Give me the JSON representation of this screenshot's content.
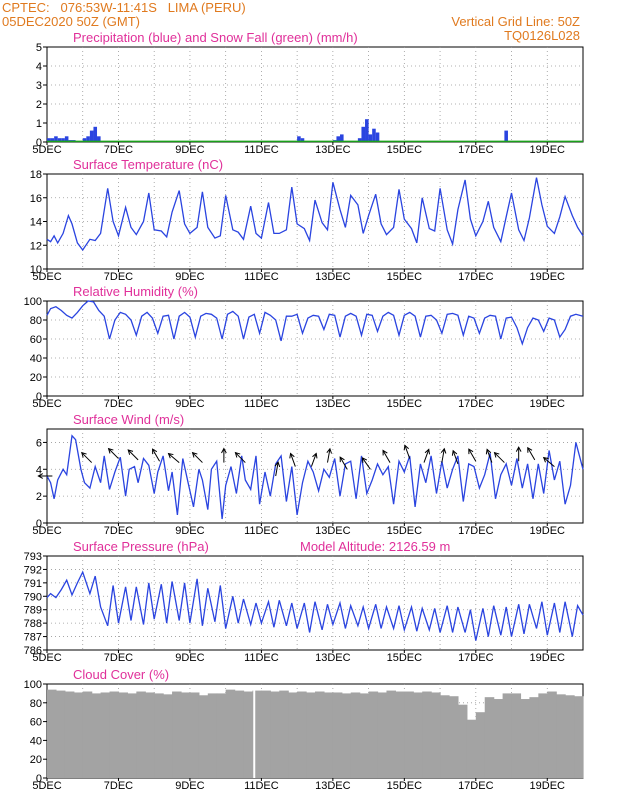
{
  "header": {
    "source_line": "CPTEC:   076:53W-11:41S   LIMA (PERU)",
    "date_line": "05DEC2020 50Z (GMT)",
    "grid_line": "Vertical Grid Line: 50Z",
    "code": "TQ0126L028"
  },
  "colors": {
    "header": "#e07a1f",
    "panel_title": "#e0309a",
    "line": "#2a44e0",
    "snow": "#1aa01a",
    "cloud": "#a3a3a3",
    "grid": "#999999"
  },
  "chart_data": [
    {
      "type": "bar",
      "title": "Precipitation (blue) and Snow Fall (green) (mm/h)",
      "ylim": [
        0,
        5
      ],
      "yticks": [
        0,
        1,
        2,
        3,
        4,
        5
      ],
      "xlabels": [
        "5DEC",
        "7DEC",
        "9DEC",
        "11DEC",
        "13DEC",
        "15DEC",
        "17DEC",
        "19DEC"
      ],
      "x_day0": "5DEC",
      "x_days": 15,
      "series": [
        {
          "color": "blue",
          "x": [
            0.05,
            0.15,
            0.25,
            0.35,
            0.45,
            0.55,
            0.65,
            0.75,
            1.05,
            1.15,
            1.25,
            1.35,
            1.45,
            4.05,
            4.15,
            7.05,
            7.15,
            8.05,
            8.15,
            8.25,
            8.75,
            8.85,
            8.95,
            9.05,
            9.15,
            9.25,
            12.85
          ],
          "values": [
            0.2,
            0.2,
            0.3,
            0.2,
            0.2,
            0.3,
            0.1,
            0.1,
            0.2,
            0.3,
            0.6,
            0.8,
            0.3,
            0.05,
            0.05,
            0.3,
            0.2,
            0.1,
            0.3,
            0.4,
            0.2,
            0.8,
            1.2,
            0.4,
            0.7,
            0.5,
            0.6
          ]
        },
        {
          "color": "green",
          "x": [
            0,
            15
          ],
          "values": [
            0.03,
            0.03
          ]
        }
      ]
    },
    {
      "type": "line",
      "title": "Surface Temperature (nC)",
      "ylim": [
        10,
        18
      ],
      "yticks": [
        10,
        12,
        14,
        16,
        18
      ],
      "xlabels": [
        "5DEC",
        "7DEC",
        "9DEC",
        "11DEC",
        "13DEC",
        "15DEC",
        "17DEC",
        "19DEC"
      ],
      "x_day0": "5DEC",
      "x_days": 15,
      "x": [
        0.0,
        0.1,
        0.2,
        0.3,
        0.45,
        0.6,
        0.7,
        0.85,
        1.0,
        1.2,
        1.35,
        1.5,
        1.7,
        1.85,
        2.0,
        2.2,
        2.35,
        2.5,
        2.7,
        2.85,
        3.0,
        3.2,
        3.35,
        3.5,
        3.7,
        3.85,
        4.0,
        4.2,
        4.35,
        4.5,
        4.7,
        4.85,
        5.0,
        5.2,
        5.35,
        5.5,
        5.7,
        5.85,
        6.0,
        6.2,
        6.35,
        6.5,
        6.7,
        6.85,
        7.0,
        7.2,
        7.35,
        7.5,
        7.7,
        7.85,
        8.0,
        8.2,
        8.35,
        8.5,
        8.7,
        8.85,
        9.0,
        9.2,
        9.35,
        9.5,
        9.7,
        9.85,
        10.0,
        10.2,
        10.35,
        10.5,
        10.7,
        10.85,
        11.0,
        11.2,
        11.35,
        11.5,
        11.7,
        11.85,
        12.0,
        12.2,
        12.35,
        12.5,
        12.7,
        12.85,
        13.0,
        13.2,
        13.35,
        13.5,
        13.7,
        13.85,
        14.0,
        14.2,
        14.35,
        14.5,
        14.7,
        14.85,
        15.0
      ],
      "values": [
        12.5,
        12.3,
        12.8,
        12.2,
        13.0,
        14.5,
        13.8,
        12.2,
        11.6,
        12.5,
        12.4,
        13.0,
        16.8,
        14.0,
        12.8,
        15.2,
        13.5,
        12.9,
        14.0,
        16.4,
        13.3,
        13.2,
        12.7,
        14.8,
        16.6,
        13.8,
        13.0,
        13.5,
        16.5,
        13.5,
        12.6,
        12.8,
        16.2,
        13.3,
        13.1,
        12.5,
        15.3,
        13.0,
        12.6,
        15.6,
        13.0,
        13.0,
        13.3,
        16.9,
        13.8,
        13.4,
        12.4,
        15.8,
        13.9,
        13.3,
        17.3,
        15.0,
        13.5,
        16.2,
        15.4,
        13.0,
        14.5,
        16.3,
        13.8,
        12.9,
        13.5,
        16.7,
        14.2,
        13.4,
        12.2,
        16.0,
        13.4,
        13.2,
        16.8,
        13.3,
        12.1,
        15.0,
        17.5,
        14.2,
        12.8,
        14.0,
        15.7,
        13.5,
        12.3,
        14.4,
        16.4,
        13.3,
        12.4,
        14.3,
        17.7,
        15.4,
        13.6,
        13.0,
        14.4,
        16.1,
        14.5,
        13.5,
        12.8
      ]
    },
    {
      "type": "line",
      "title": "Relative Humidity (%)",
      "ylim": [
        0,
        100
      ],
      "yticks": [
        0,
        20,
        40,
        60,
        80,
        100
      ],
      "xlabels": [
        "5DEC",
        "7DEC",
        "9DEC",
        "11DEC",
        "13DEC",
        "15DEC",
        "17DEC",
        "19DEC"
      ],
      "x_day0": "5DEC",
      "x_days": 15,
      "x": [
        0.0,
        0.1,
        0.25,
        0.4,
        0.55,
        0.7,
        0.85,
        1.0,
        1.15,
        1.3,
        1.45,
        1.6,
        1.75,
        1.9,
        2.05,
        2.2,
        2.35,
        2.5,
        2.65,
        2.8,
        2.95,
        3.1,
        3.25,
        3.4,
        3.55,
        3.7,
        3.85,
        4.0,
        4.15,
        4.3,
        4.45,
        4.6,
        4.75,
        4.9,
        5.05,
        5.2,
        5.35,
        5.5,
        5.65,
        5.8,
        5.95,
        6.1,
        6.25,
        6.4,
        6.55,
        6.7,
        6.85,
        7.0,
        7.15,
        7.3,
        7.45,
        7.6,
        7.75,
        7.9,
        8.05,
        8.2,
        8.35,
        8.5,
        8.65,
        8.8,
        8.95,
        9.1,
        9.25,
        9.4,
        9.55,
        9.7,
        9.85,
        10.0,
        10.15,
        10.3,
        10.45,
        10.6,
        10.75,
        10.9,
        11.05,
        11.2,
        11.35,
        11.5,
        11.65,
        11.8,
        11.95,
        12.1,
        12.25,
        12.4,
        12.55,
        12.7,
        12.85,
        13.0,
        13.15,
        13.3,
        13.45,
        13.6,
        13.75,
        13.9,
        14.05,
        14.2,
        14.35,
        14.5,
        14.65,
        14.8,
        15.0
      ],
      "values": [
        85,
        92,
        94,
        90,
        85,
        82,
        88,
        95,
        100,
        99,
        90,
        84,
        60,
        80,
        88,
        86,
        80,
        64,
        84,
        88,
        82,
        66,
        84,
        85,
        60,
        84,
        88,
        83,
        62,
        84,
        87,
        86,
        82,
        60,
        86,
        89,
        84,
        60,
        83,
        86,
        66,
        88,
        85,
        80,
        58,
        84,
        84,
        86,
        66,
        82,
        85,
        84,
        70,
        86,
        85,
        62,
        84,
        87,
        84,
        64,
        86,
        85,
        68,
        84,
        88,
        85,
        64,
        85,
        88,
        84,
        62,
        84,
        85,
        80,
        66,
        86,
        87,
        85,
        64,
        84,
        82,
        66,
        82,
        85,
        84,
        60,
        82,
        83,
        72,
        55,
        72,
        82,
        80,
        68,
        82,
        80,
        62,
        70,
        84,
        86,
        84
      ]
    },
    {
      "type": "line",
      "title": "Surface Wind (m/s)",
      "ylim": [
        0,
        7
      ],
      "yticks": [
        0,
        2,
        4,
        6
      ],
      "xlabels": [
        "5DEC",
        "7DEC",
        "9DEC",
        "11DEC",
        "13DEC",
        "15DEC",
        "17DEC",
        "19DEC"
      ],
      "x_day0": "5DEC",
      "x_days": 15,
      "x": [
        0.0,
        0.1,
        0.2,
        0.3,
        0.45,
        0.55,
        0.7,
        0.8,
        0.95,
        1.05,
        1.2,
        1.35,
        1.5,
        1.6,
        1.75,
        1.9,
        2.05,
        2.2,
        2.3,
        2.45,
        2.55,
        2.7,
        2.85,
        3.0,
        3.1,
        3.25,
        3.4,
        3.5,
        3.65,
        3.8,
        3.95,
        4.1,
        4.25,
        4.35,
        4.5,
        4.6,
        4.75,
        4.9,
        5.0,
        5.15,
        5.3,
        5.45,
        5.55,
        5.7,
        5.85,
        5.95,
        6.1,
        6.25,
        6.4,
        6.55,
        6.7,
        6.85,
        7.0,
        7.15,
        7.3,
        7.45,
        7.6,
        7.75,
        7.9,
        8.05,
        8.2,
        8.35,
        8.5,
        8.65,
        8.8,
        8.95,
        9.1,
        9.25,
        9.4,
        9.55,
        9.7,
        9.85,
        10.0,
        10.15,
        10.3,
        10.45,
        10.6,
        10.75,
        10.9,
        11.05,
        11.2,
        11.35,
        11.5,
        11.65,
        11.8,
        11.95,
        12.1,
        12.25,
        12.4,
        12.55,
        12.7,
        12.85,
        13.0,
        13.15,
        13.3,
        13.45,
        13.6,
        13.75,
        13.9,
        14.05,
        14.2,
        14.35,
        14.5,
        14.65,
        14.8,
        15.0
      ],
      "values": [
        3.5,
        3.0,
        1.8,
        3.2,
        4.0,
        3.6,
        6.5,
        6.2,
        4.0,
        3.0,
        2.6,
        4.2,
        3.0,
        5.0,
        2.5,
        3.8,
        4.9,
        2.0,
        4.0,
        4.2,
        3.0,
        4.8,
        4.3,
        2.2,
        3.8,
        5.0,
        2.4,
        3.8,
        0.6,
        4.8,
        3.0,
        1.2,
        4.0,
        3.2,
        1.0,
        4.0,
        4.6,
        0.3,
        2.8,
        4.2,
        2.2,
        5.0,
        3.2,
        2.5,
        5.0,
        1.4,
        3.8,
        2.0,
        4.4,
        5.0,
        1.6,
        4.2,
        0.6,
        3.0,
        4.6,
        3.8,
        2.4,
        4.0,
        3.4,
        4.8,
        2.0,
        4.4,
        4.6,
        1.8,
        5.0,
        2.2,
        3.2,
        4.4,
        3.6,
        4.2,
        1.4,
        4.6,
        3.8,
        5.0,
        1.2,
        4.4,
        3.0,
        5.0,
        2.2,
        4.6,
        2.6,
        4.0,
        5.0,
        1.6,
        4.4,
        4.2,
        2.6,
        3.6,
        5.2,
        1.8,
        3.6,
        4.4,
        2.8,
        4.8,
        2.6,
        4.4,
        1.8,
        4.4,
        2.2,
        5.4,
        3.2,
        4.6,
        1.4,
        2.8,
        6.0,
        4.0
      ],
      "arrows": {
        "x": [
          0.15,
          1.25,
          2.0,
          2.55,
          3.15,
          3.7,
          4.35,
          4.95,
          5.55,
          6.4,
          6.95,
          7.4,
          7.85,
          8.4,
          9.05,
          9.6,
          10.15,
          10.55,
          11.05,
          11.5,
          12.0,
          12.45,
          12.8,
          13.2,
          13.65,
          14.2
        ],
        "speed": [
          3.5,
          4.5,
          4.8,
          4.7,
          4.6,
          4.5,
          4.5,
          4.5,
          4.5,
          3.5,
          4.2,
          4.2,
          4.5,
          4.0,
          4.0,
          4.5,
          4.8,
          4.5,
          4.5,
          4.4,
          4.6,
          4.5,
          4.5,
          4.6,
          4.7,
          4.2
        ],
        "direction_deg": [
          180,
          135,
          135,
          135,
          120,
          140,
          135,
          90,
          135,
          80,
          110,
          70,
          80,
          120,
          125,
          120,
          110,
          70,
          80,
          110,
          120,
          110,
          135,
          90,
          120,
          140
        ]
      }
    },
    {
      "type": "line",
      "title": "Surface Pressure (hPa)",
      "annotation": "Model Altitude: 2126.59 m",
      "ylim": [
        786,
        793
      ],
      "yticks": [
        786,
        787,
        788,
        789,
        790,
        791,
        792,
        793
      ],
      "xlabels": [
        "5DEC",
        "7DEC",
        "9DEC",
        "11DEC",
        "13DEC",
        "15DEC",
        "17DEC",
        "19DEC"
      ],
      "x_day0": "5DEC",
      "x_days": 15,
      "x": [
        0.0,
        0.1,
        0.25,
        0.4,
        0.55,
        0.7,
        0.85,
        1.0,
        1.2,
        1.35,
        1.5,
        1.7,
        1.85,
        2.0,
        2.2,
        2.35,
        2.5,
        2.7,
        2.85,
        3.0,
        3.2,
        3.35,
        3.5,
        3.7,
        3.85,
        4.0,
        4.2,
        4.35,
        4.5,
        4.7,
        4.85,
        5.0,
        5.2,
        5.35,
        5.5,
        5.7,
        5.85,
        6.0,
        6.2,
        6.35,
        6.5,
        6.7,
        6.85,
        7.0,
        7.2,
        7.35,
        7.5,
        7.7,
        7.85,
        8.0,
        8.2,
        8.35,
        8.5,
        8.7,
        8.85,
        9.0,
        9.2,
        9.35,
        9.5,
        9.7,
        9.85,
        10.0,
        10.2,
        10.35,
        10.5,
        10.7,
        10.85,
        11.0,
        11.2,
        11.35,
        11.5,
        11.7,
        11.85,
        12.0,
        12.2,
        12.35,
        12.5,
        12.7,
        12.85,
        13.0,
        13.2,
        13.35,
        13.5,
        13.7,
        13.85,
        14.0,
        14.2,
        14.35,
        14.5,
        14.7,
        14.85,
        15.0
      ],
      "values": [
        789.9,
        790.2,
        789.9,
        790.5,
        791.2,
        790.1,
        791.0,
        791.8,
        790.2,
        791.5,
        789.2,
        787.8,
        790.8,
        788.0,
        790.7,
        788.2,
        790.7,
        787.9,
        791.0,
        788.3,
        790.9,
        788.0,
        791.1,
        788.2,
        791.0,
        788.0,
        791.3,
        787.8,
        790.6,
        788.1,
        790.8,
        787.6,
        790.0,
        788.0,
        789.8,
        787.9,
        789.5,
        788.0,
        789.6,
        787.7,
        789.7,
        787.8,
        789.5,
        787.6,
        789.5,
        787.3,
        789.6,
        787.5,
        789.4,
        787.9,
        789.5,
        787.6,
        789.3,
        787.8,
        789.2,
        787.6,
        789.4,
        787.6,
        789.2,
        787.6,
        789.3,
        787.5,
        789.2,
        787.4,
        789.1,
        787.5,
        789.1,
        787.3,
        789.3,
        787.3,
        789.2,
        787.3,
        789.0,
        786.7,
        789.1,
        787.0,
        789.3,
        787.1,
        789.2,
        787.0,
        789.4,
        787.2,
        789.4,
        787.6,
        789.6,
        787.1,
        789.5,
        787.3,
        789.6,
        787.0,
        789.3,
        788.6
      ]
    },
    {
      "type": "bar",
      "title": "Cloud Cover (%)",
      "ylim": [
        0,
        100
      ],
      "yticks": [
        0,
        20,
        40,
        60,
        80,
        100
      ],
      "xlabels": [
        "5DEC",
        "7DEC",
        "9DEC",
        "11DEC",
        "13DEC",
        "15DEC",
        "17DEC",
        "19DEC"
      ],
      "x_day0": "5DEC",
      "x_days": 15,
      "x": [
        0.0,
        0.25,
        0.5,
        0.75,
        1.0,
        1.25,
        1.5,
        1.75,
        2.0,
        2.25,
        2.5,
        2.75,
        3.0,
        3.25,
        3.5,
        3.75,
        4.0,
        4.25,
        4.5,
        4.75,
        5.0,
        5.25,
        5.5,
        5.75,
        6.0,
        6.25,
        6.5,
        6.75,
        7.0,
        7.25,
        7.5,
        7.75,
        8.0,
        8.25,
        8.5,
        8.75,
        9.0,
        9.25,
        9.5,
        9.75,
        10.0,
        10.25,
        10.5,
        10.75,
        11.0,
        11.25,
        11.5,
        11.75,
        12.0,
        12.25,
        12.5,
        12.75,
        13.0,
        13.25,
        13.5,
        13.75,
        14.0,
        14.25,
        14.5,
        14.75
      ],
      "values": [
        94,
        93,
        92,
        91,
        92,
        90,
        91,
        92,
        91,
        90,
        92,
        91,
        90,
        89,
        92,
        91,
        91,
        88,
        90,
        90,
        94,
        93,
        92,
        93,
        93,
        92,
        93,
        91,
        92,
        91,
        92,
        91,
        91,
        90,
        91,
        90,
        92,
        91,
        93,
        92,
        92,
        91,
        92,
        91,
        88,
        87,
        78,
        62,
        70,
        86,
        84,
        90,
        90,
        84,
        86,
        90,
        92,
        89,
        88,
        87
      ]
    }
  ]
}
